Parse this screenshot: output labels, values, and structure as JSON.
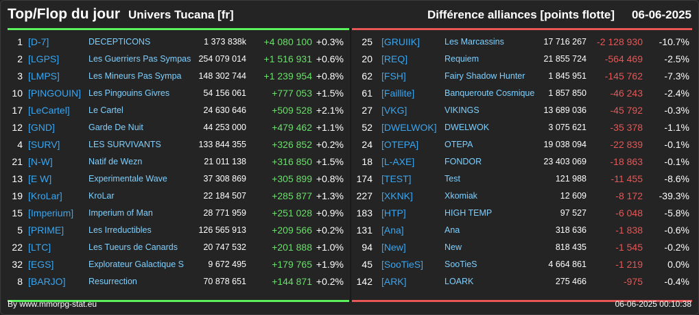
{
  "header": {
    "title": "Top/Flop du jour",
    "universe": "Univers Tucana [fr]",
    "subtitle": "Différence alliances [points flotte]",
    "date": "06-06-2025"
  },
  "top": [
    {
      "rank": "1",
      "tag": "[D-7]",
      "name": "DECEPTICONS",
      "points": "1 373 838k",
      "diff": "+4 080 100",
      "pct": "+0.3%"
    },
    {
      "rank": "2",
      "tag": "[LGPS]",
      "name": "Les Guerriers Pas Sympas",
      "points": "254 079 014",
      "diff": "+1 516 931",
      "pct": "+0.6%"
    },
    {
      "rank": "3",
      "tag": "[LMPS]",
      "name": "Les Mineurs Pas Sympa",
      "points": "148 302 744",
      "diff": "+1 239 954",
      "pct": "+0.8%"
    },
    {
      "rank": "10",
      "tag": "[PINGOUIN]",
      "name": "Les Pingouins Givres",
      "points": "54 156 061",
      "diff": "+777 053",
      "pct": "+1.5%"
    },
    {
      "rank": "17",
      "tag": "[LeCartel]",
      "name": "Le Cartel",
      "points": "24 630 646",
      "diff": "+509 528",
      "pct": "+2.1%"
    },
    {
      "rank": "12",
      "tag": "[GND]",
      "name": "Garde De Nuit",
      "points": "44 253 000",
      "diff": "+479 462",
      "pct": "+1.1%"
    },
    {
      "rank": "4",
      "tag": "[SURV]",
      "name": "LES SURVIVANTS",
      "points": "133 844 355",
      "diff": "+326 852",
      "pct": "+0.2%"
    },
    {
      "rank": "21",
      "tag": "[N-W]",
      "name": "Natif de Wezn",
      "points": "21 011 138",
      "diff": "+316 850",
      "pct": "+1.5%"
    },
    {
      "rank": "13",
      "tag": "[E W]",
      "name": "Experimentale Wave",
      "points": "37 308 869",
      "diff": "+305 899",
      "pct": "+0.8%"
    },
    {
      "rank": "19",
      "tag": "[KroLar]",
      "name": "KroLar",
      "points": "22 184 507",
      "diff": "+285 877",
      "pct": "+1.3%"
    },
    {
      "rank": "15",
      "tag": "[Imperium]",
      "name": "Imperium of Man",
      "points": "28 771 959",
      "diff": "+251 028",
      "pct": "+0.9%"
    },
    {
      "rank": "5",
      "tag": "[PRIME]",
      "name": "Les Irreductibles",
      "points": "126 565 913",
      "diff": "+209 566",
      "pct": "+0.2%"
    },
    {
      "rank": "22",
      "tag": "[LTC]",
      "name": "Les Tueurs de Canards",
      "points": "20 747 532",
      "diff": "+201 888",
      "pct": "+1.0%"
    },
    {
      "rank": "32",
      "tag": "[EGS]",
      "name": "Explorateur Galactique S",
      "points": "9 672 495",
      "diff": "+179 765",
      "pct": "+1.9%"
    },
    {
      "rank": "8",
      "tag": "[BARJO]",
      "name": "Resurrection",
      "points": "70 878 651",
      "diff": "+144 871",
      "pct": "+0.2%"
    }
  ],
  "flop": [
    {
      "rank": "25",
      "tag": "[GRUIIK]",
      "name": "Les Marcassins",
      "points": "17 716 267",
      "diff": "-2 128 930",
      "pct": "-10.7%"
    },
    {
      "rank": "20",
      "tag": "[REQ]",
      "name": "Requiem",
      "points": "21 855 724",
      "diff": "-564 469",
      "pct": "-2.5%"
    },
    {
      "rank": "62",
      "tag": "[FSH]",
      "name": "Fairy Shadow Hunter",
      "points": "1 845 951",
      "diff": "-145 762",
      "pct": "-7.3%"
    },
    {
      "rank": "61",
      "tag": "[Faillite]",
      "name": "Banqueroute Cosmique",
      "points": "1 857 850",
      "diff": "-46 243",
      "pct": "-2.4%"
    },
    {
      "rank": "27",
      "tag": "[VKG]",
      "name": "VIKINGS",
      "points": "13 689 036",
      "diff": "-45 792",
      "pct": "-0.3%"
    },
    {
      "rank": "52",
      "tag": "[DWELWOK]",
      "name": "DWELWOK",
      "points": "3 075 621",
      "diff": "-35 378",
      "pct": "-1.1%"
    },
    {
      "rank": "24",
      "tag": "[OTEPA]",
      "name": "OTEPA",
      "points": "19 038 094",
      "diff": "-22 839",
      "pct": "-0.1%"
    },
    {
      "rank": "18",
      "tag": "[L-AXE]",
      "name": "FONDOR",
      "points": "23 403 069",
      "diff": "-18 863",
      "pct": "-0.1%"
    },
    {
      "rank": "174",
      "tag": "[TEST]",
      "name": "Test",
      "points": "121 988",
      "diff": "-11 455",
      "pct": "-8.6%"
    },
    {
      "rank": "227",
      "tag": "[XKNK]",
      "name": "Xkomiak",
      "points": "12 609",
      "diff": "-8 172",
      "pct": "-39.3%"
    },
    {
      "rank": "183",
      "tag": "[HTP]",
      "name": "HIGH TEMP",
      "points": "97 527",
      "diff": "-6 048",
      "pct": "-5.8%"
    },
    {
      "rank": "131",
      "tag": "[Ana]",
      "name": "Ana",
      "points": "318 636",
      "diff": "-1 838",
      "pct": "-0.6%"
    },
    {
      "rank": "94",
      "tag": "[New]",
      "name": "New",
      "points": "818 435",
      "diff": "-1 545",
      "pct": "-0.2%"
    },
    {
      "rank": "45",
      "tag": "[SooTieS]",
      "name": "SooTieS",
      "points": "4 664 861",
      "diff": "-1 219",
      "pct": "0.0%"
    },
    {
      "rank": "142",
      "tag": "[ARK]",
      "name": "LOARK",
      "points": "275 466",
      "diff": "-975",
      "pct": "-0.4%"
    }
  ],
  "footer": {
    "credit": "By www.mmorpg-stat.eu",
    "timestamp": "06-06-2025 00:10:38"
  },
  "colors": {
    "top_accent": "#5cf25c",
    "flop_accent": "#e85656",
    "tag": "#3aa6f0",
    "name": "#7fd0ff"
  }
}
